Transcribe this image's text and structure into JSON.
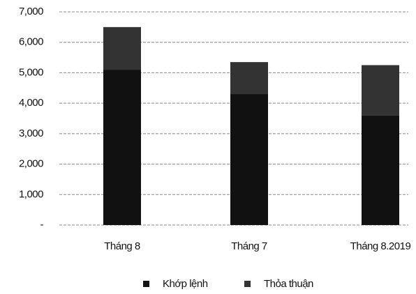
{
  "chart_data": {
    "type": "stacked_bar",
    "categories": [
      "Tháng 8",
      "Tháng 7",
      "Tháng 8.2019"
    ],
    "series": [
      {
        "name": "Khớp lệnh",
        "color": "#111111",
        "values": [
          5100,
          4300,
          3600
        ]
      },
      {
        "name": "Thỏa thuận",
        "color": "#333333",
        "values": [
          1400,
          1050,
          1650
        ]
      }
    ],
    "ylim": [
      0,
      7000
    ],
    "yticks": [
      {
        "value": 0,
        "label": "-"
      },
      {
        "value": 1000,
        "label": "1,000"
      },
      {
        "value": 2000,
        "label": "2,000"
      },
      {
        "value": 3000,
        "label": "3,000"
      },
      {
        "value": 4000,
        "label": "4,000"
      },
      {
        "value": 5000,
        "label": "5,000"
      },
      {
        "value": 6000,
        "label": "6,000"
      },
      {
        "value": 7000,
        "label": "7,000"
      }
    ],
    "grid": true,
    "legend": "bottom"
  }
}
